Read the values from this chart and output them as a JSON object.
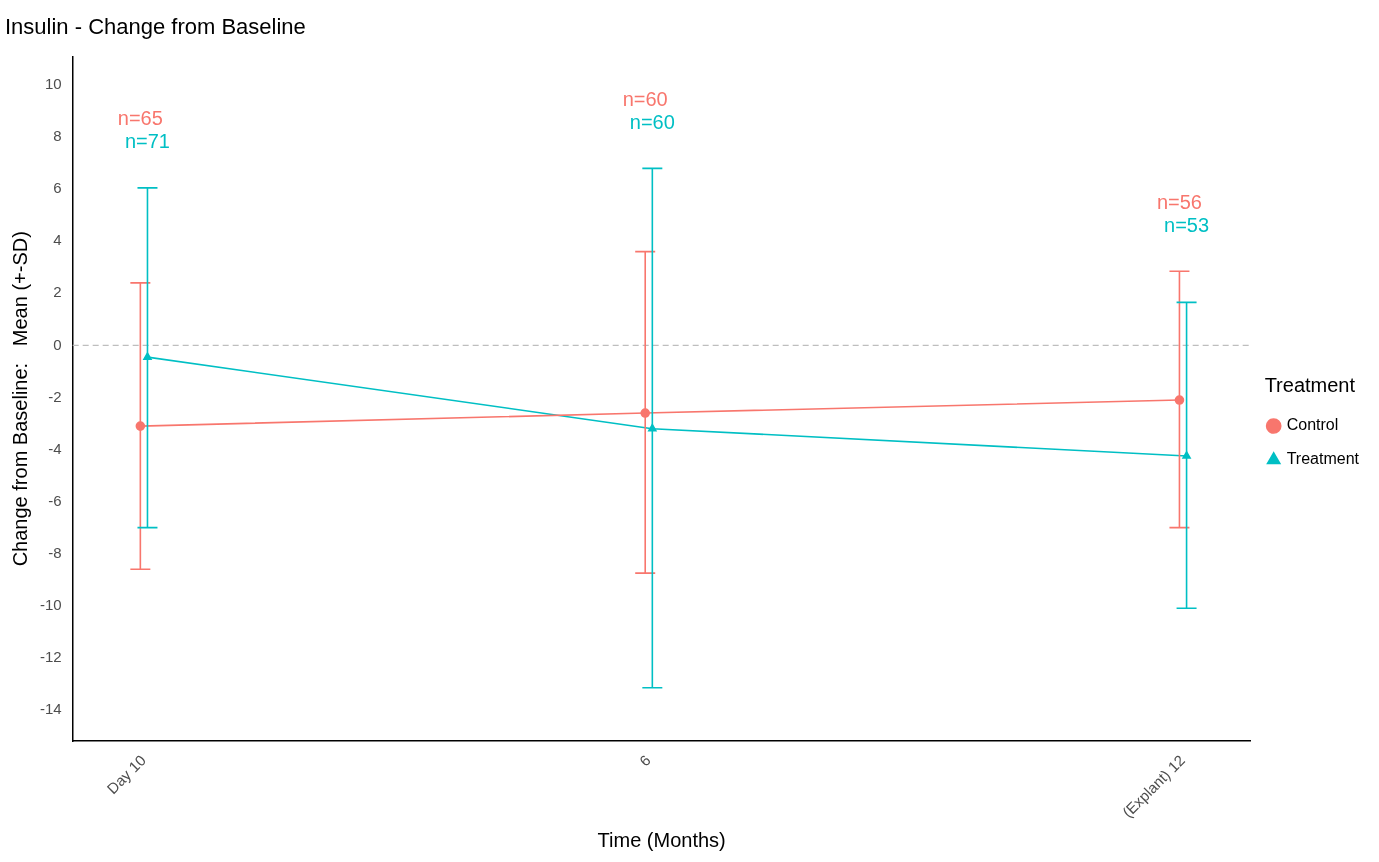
{
  "chart_data": {
    "type": "line",
    "title": "Insulin - Change from Baseline",
    "xlabel": "Time (Months)",
    "ylabel": "Change from Baseline:   Mean (+-SD)",
    "legend_title": "Treatment",
    "legend": "right",
    "grid": false,
    "xlim": [
      -0.47,
      12.76
    ],
    "xticks": [
      {
        "value": 0.33,
        "label": "Day 10"
      },
      6,
      {
        "value": 12,
        "label": "(Explant) 12"
      }
    ],
    "ylim": [
      -15.2,
      11.1
    ],
    "yticks": [
      -14,
      -12,
      -10,
      -8,
      -6,
      -4,
      -2,
      0,
      2,
      4,
      6,
      8,
      10
    ],
    "series": [
      {
        "name": "Control",
        "color": "#f8766d",
        "marker": "circle",
        "x": [
          0.29,
          5.96,
          11.96
        ],
        "values": [
          -3.1,
          -2.6,
          -2.1
        ],
        "errors": [
          [
            -8.6,
            2.4
          ],
          [
            -8.75,
            3.6
          ],
          [
            -7.0,
            2.85
          ]
        ]
      },
      {
        "name": "Treatment",
        "color": "#00bfc4",
        "marker": "triangle",
        "x": [
          0.37,
          6.04,
          12.04
        ],
        "values": [
          -0.45,
          -3.2,
          -4.25
        ],
        "errors": [
          [
            -7.0,
            6.05
          ],
          [
            -13.15,
            6.8
          ],
          [
            -10.1,
            1.65
          ]
        ]
      }
    ],
    "ref_lines": [
      {
        "axis": "y",
        "value": 0,
        "color": "#bebebe",
        "line_style": "dashed"
      }
    ],
    "annotations": [
      "n=65",
      "n=71",
      "n=60",
      "n=60",
      "n=56",
      "n=53"
    ]
  }
}
